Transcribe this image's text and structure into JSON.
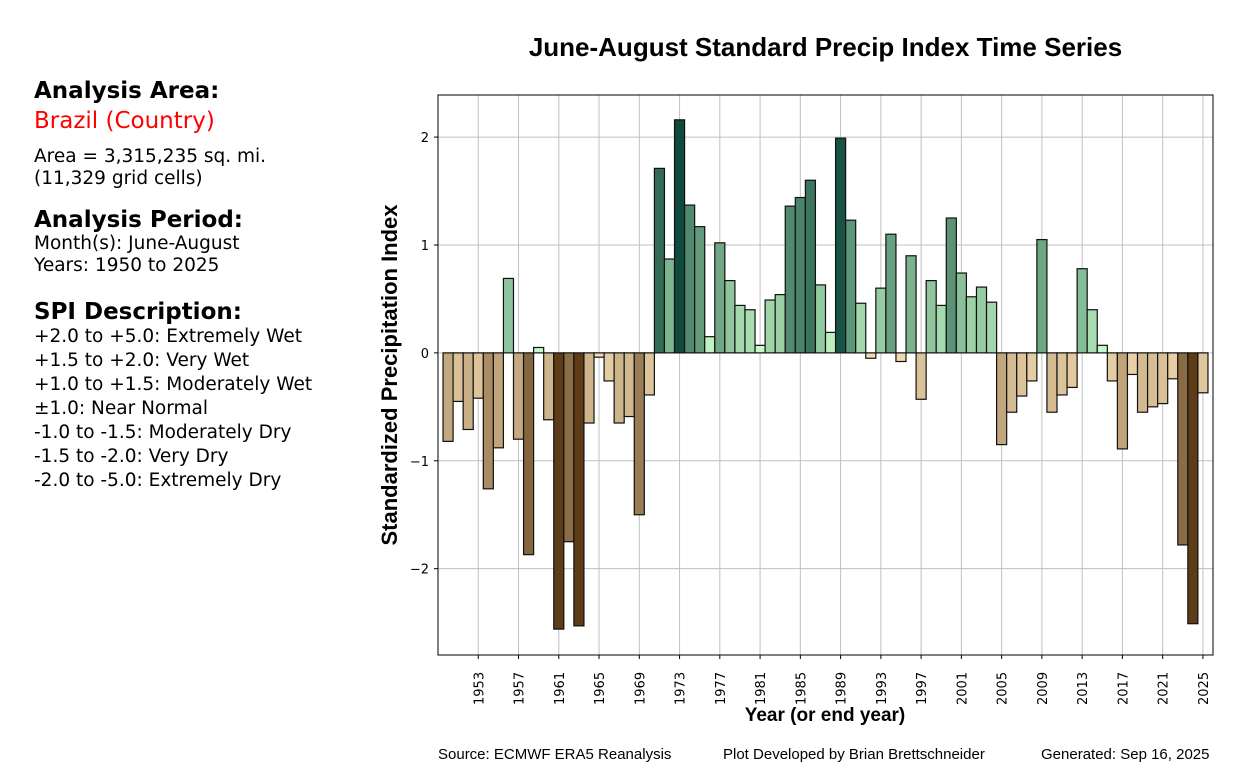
{
  "sidebar": {
    "area_heading": "Analysis Area:",
    "area_name": "Brazil (Country)",
    "area_size": "Area = 3,315,235 sq. mi.",
    "grid_cells": "(11,329 grid cells)",
    "period_heading": "Analysis Period:",
    "months": "Month(s): June-August",
    "years": "Years: 1950 to 2025",
    "spi_heading": "SPI Description:",
    "spi_items": [
      "+2.0 to +5.0: Extremely Wet",
      "+1.5 to +2.0: Very Wet",
      "+1.0 to +1.5: Moderately Wet",
      "±1.0: Near Normal",
      "-1.0 to -1.5: Moderately Dry",
      "-1.5 to -2.0: Very Dry",
      "-2.0 to -5.0: Extremely Dry"
    ],
    "area_name_color": "#ff0000"
  },
  "footer": {
    "source": "Source: ECMWF ERA5 Reanalysis",
    "developer": "Plot Developed by Brian Brettschneider",
    "generated": "Generated: Sep 16, 2025"
  },
  "chart_data": {
    "type": "bar",
    "title": "June-August Standard Precip Index Time Series",
    "xlabel": "Year (or end year)",
    "ylabel": "Standardized Precipitation Index",
    "xlim": [
      1949,
      2026
    ],
    "ylim": [
      -2.8,
      2.39
    ],
    "grid": true,
    "x_ticks": [
      1953,
      1957,
      1961,
      1965,
      1969,
      1973,
      1977,
      1981,
      1985,
      1989,
      1993,
      1997,
      2001,
      2005,
      2009,
      2013,
      2017,
      2021,
      2025
    ],
    "y_ticks": [
      -2,
      -1,
      0,
      1,
      2
    ],
    "colors": {
      "dry_light": "#f5deb3",
      "dry_dark": "#5e3c17",
      "wet_light": "#ccffcc",
      "wet_dark": "#0f4a3c"
    },
    "x": [
      1950,
      1951,
      1952,
      1953,
      1954,
      1955,
      1956,
      1957,
      1958,
      1959,
      1960,
      1961,
      1962,
      1963,
      1964,
      1965,
      1966,
      1967,
      1968,
      1969,
      1970,
      1971,
      1972,
      1973,
      1974,
      1975,
      1976,
      1977,
      1978,
      1979,
      1980,
      1981,
      1982,
      1983,
      1984,
      1985,
      1986,
      1987,
      1988,
      1989,
      1990,
      1991,
      1992,
      1993,
      1994,
      1995,
      1996,
      1997,
      1998,
      1999,
      2000,
      2001,
      2002,
      2003,
      2004,
      2005,
      2006,
      2007,
      2008,
      2009,
      2010,
      2011,
      2012,
      2013,
      2014,
      2015,
      2016,
      2017,
      2018,
      2019,
      2020,
      2021,
      2022,
      2023,
      2024,
      2025
    ],
    "values": [
      -0.82,
      -0.45,
      -0.71,
      -0.42,
      -1.26,
      -0.88,
      0.69,
      -0.8,
      -1.87,
      0.05,
      -0.62,
      -2.56,
      -1.75,
      -2.53,
      -0.65,
      -0.04,
      -0.26,
      -0.65,
      -0.59,
      -1.5,
      -0.39,
      1.71,
      0.87,
      2.16,
      1.37,
      1.17,
      0.15,
      1.02,
      0.67,
      0.44,
      0.4,
      0.07,
      0.49,
      0.54,
      1.36,
      1.44,
      1.6,
      0.63,
      0.19,
      1.99,
      1.23,
      0.46,
      -0.05,
      0.6,
      1.1,
      -0.08,
      0.9,
      -0.43,
      0.67,
      0.44,
      1.25,
      0.74,
      0.52,
      0.61,
      0.47,
      -0.85,
      -0.55,
      -0.4,
      -0.26,
      1.05,
      -0.55,
      -0.39,
      -0.32,
      0.78,
      0.4,
      0.07,
      -0.26,
      -0.89,
      -0.2,
      -0.55,
      -0.5,
      -0.47,
      -0.24,
      -1.78,
      -2.51,
      -0.37
    ]
  }
}
